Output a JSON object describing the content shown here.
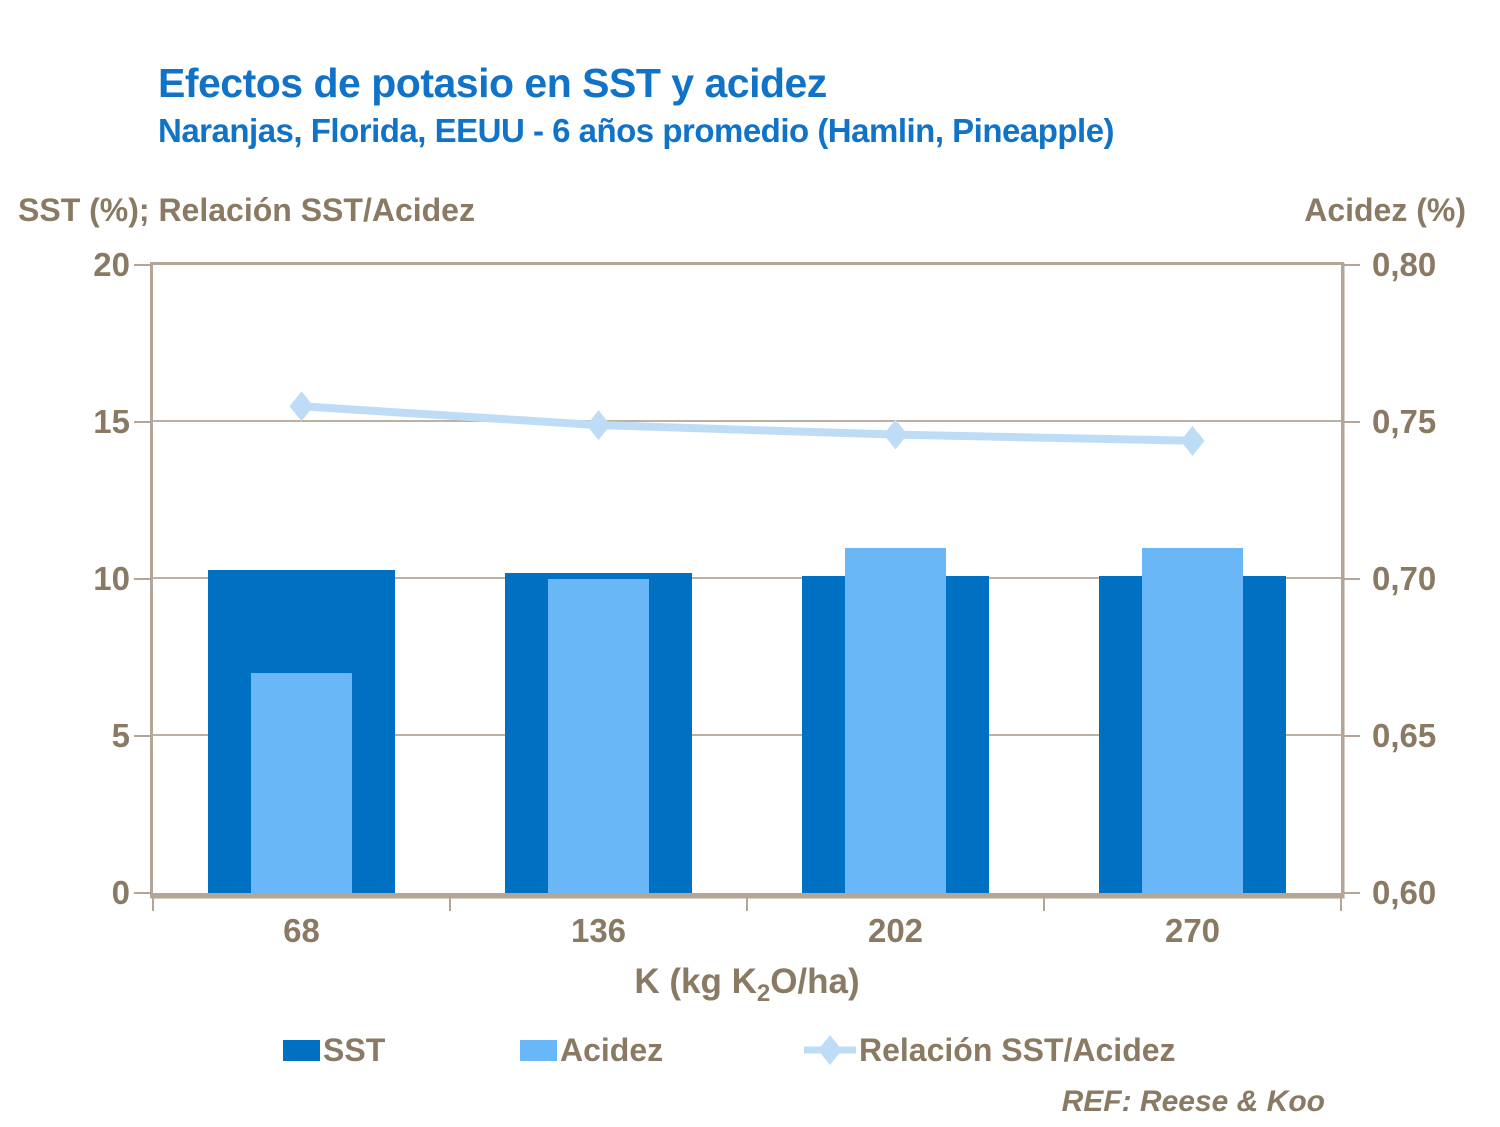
{
  "header": {
    "title": "Efectos de potasio en SST y acidez",
    "subtitle": "Naranjas, Florida, EEUU - 6 años promedio (Hamlin, Pineapple)"
  },
  "x_axis_title": {
    "prefix": "K (kg K",
    "subscript": "2",
    "suffix": "O/ha)"
  },
  "footnote": "REF: Reese & Koo",
  "colors": {
    "title_blue": "#1173c8",
    "text_brown": "#8a7a64",
    "sst_bar": "#0071c2",
    "acidez_bar": "#6ab7f7",
    "ratio_line": "#bfdcf7",
    "frame": "#b3a597",
    "grid": "#bdb1a3"
  },
  "legend": [
    {
      "label": "SST",
      "marker": "square",
      "color_key": "sst_bar"
    },
    {
      "label": "Acidez",
      "marker": "square",
      "color_key": "acidez_bar"
    },
    {
      "label": "Relación SST/Acidez",
      "marker": "line-diamond",
      "color_key": "ratio_line"
    }
  ],
  "chart_data": {
    "type": "bar",
    "subtype": "dual-axis combo: grouped overlapping bars + line with diamond markers",
    "title": "Efectos de potasio en SST y acidez",
    "subtitle": "Naranjas, Florida, EEUU - 6 años promedio (Hamlin, Pineapple)",
    "xlabel": "K (kg K2O/ha)",
    "categories": [
      "68",
      "136",
      "202",
      "270"
    ],
    "series": [
      {
        "name": "SST",
        "type": "bar",
        "axis": "left",
        "values": [
          10.3,
          10.2,
          10.1,
          10.1
        ]
      },
      {
        "name": "Acidez",
        "type": "bar",
        "axis": "right",
        "values": [
          0.67,
          0.7,
          0.71,
          0.71
        ]
      },
      {
        "name": "Relación SST/Acidez",
        "type": "line",
        "axis": "left",
        "values": [
          15.5,
          14.9,
          14.6,
          14.4
        ]
      }
    ],
    "left_axis": {
      "label": "SST (%); Relación SST/Acidez",
      "min": 0,
      "max": 20,
      "ticks": [
        0,
        5,
        10,
        15,
        20
      ],
      "tick_labels": [
        "0",
        "5",
        "10",
        "15",
        "20"
      ]
    },
    "right_axis": {
      "label": "Acidez (%)",
      "min": 0.6,
      "max": 0.8,
      "ticks": [
        0.6,
        0.65,
        0.7,
        0.75,
        0.8
      ],
      "tick_labels": [
        "0,60",
        "0,65",
        "0,70",
        "0,75",
        "0,80"
      ]
    },
    "grid": true,
    "legend_position": "bottom",
    "footnote": "REF: Reese & Koo"
  }
}
